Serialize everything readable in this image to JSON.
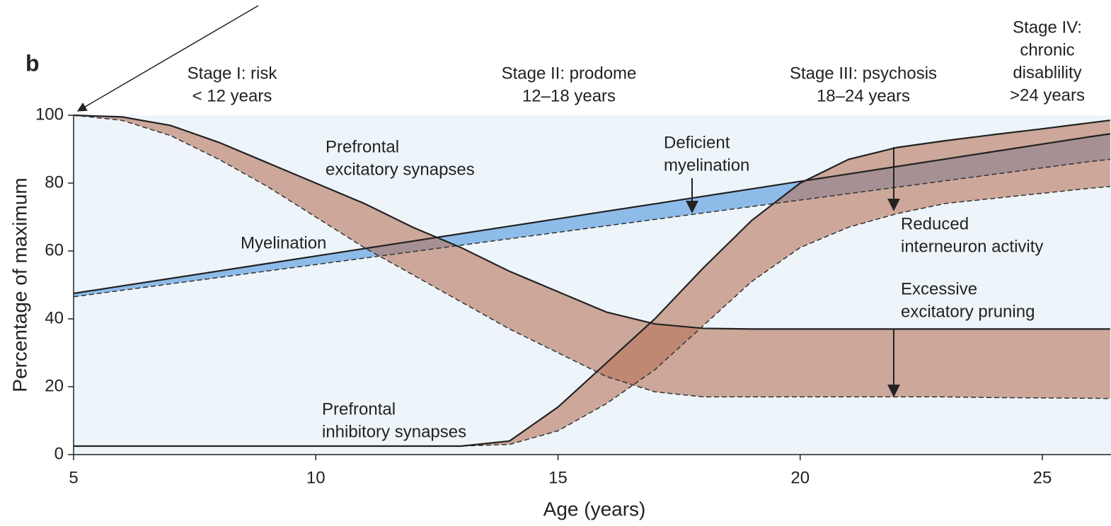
{
  "chart_data": {
    "type": "band",
    "panel": "b",
    "x_label": "Age (years)",
    "y_label": "Percentage of maximum",
    "xlim": [
      5,
      26.4
    ],
    "ylim": [
      0,
      100
    ],
    "xticks": [
      5,
      10,
      15,
      20,
      25
    ],
    "yticks": [
      0,
      20,
      40,
      60,
      80,
      100
    ],
    "x": [
      5,
      6,
      7,
      8,
      9,
      10,
      11,
      12,
      13,
      14,
      15,
      16,
      17,
      18,
      19,
      20,
      21,
      22,
      23,
      24,
      25,
      26,
      26.4
    ],
    "stages": [
      {
        "lines": [
          "Stage I: risk",
          "< 12 years"
        ]
      },
      {
        "lines": [
          "Stage II: prodome",
          "12–18 years"
        ]
      },
      {
        "lines": [
          "Stage III: psychosis",
          "18–24 years"
        ]
      },
      {
        "lines": [
          "Stage IV:",
          "chronic",
          "disablility",
          ">24 years"
        ]
      }
    ],
    "bands": [
      {
        "label": [
          "Myelination"
        ],
        "color": "#7db1e5",
        "upper": [
          47.5,
          49.7,
          51.9,
          54.1,
          56.3,
          58.5,
          60.7,
          62.9,
          65.1,
          67.3,
          69.5,
          71.7,
          73.9,
          76.1,
          78.3,
          80.5,
          82.7,
          84.9,
          87.1,
          89.3,
          91.5,
          93.7,
          94.5
        ],
        "lower": [
          46.5,
          48.4,
          50.3,
          52.2,
          54.1,
          56,
          57.9,
          59.8,
          61.7,
          63.6,
          65.5,
          67.4,
          69.3,
          71.2,
          73.1,
          75,
          76.9,
          78.8,
          80.7,
          82.6,
          84.5,
          86.4,
          87
        ]
      },
      {
        "label": [
          "Prefrontal",
          "excitatory synapses"
        ],
        "color": "#b5735a",
        "upper": [
          100,
          99.5,
          97,
          92,
          86,
          80,
          74,
          67,
          61,
          54,
          48,
          42,
          38.5,
          37.2,
          37,
          37,
          37,
          37,
          37,
          37,
          37,
          37,
          37
        ],
        "lower": [
          100,
          98.5,
          94,
          87,
          79,
          70,
          61,
          53,
          45,
          37,
          30,
          23,
          18.5,
          17,
          17,
          17,
          17,
          17,
          17,
          16.8,
          16.7,
          16.6,
          16.5
        ]
      },
      {
        "label": [
          "Prefrontal",
          "inhibitory synapses"
        ],
        "color": "#b5735a",
        "upper": [
          2.5,
          2.5,
          2.5,
          2.5,
          2.5,
          2.5,
          2.5,
          2.5,
          2.5,
          4,
          14,
          27,
          40,
          55,
          69,
          80,
          87,
          90.5,
          92.5,
          94.3,
          96,
          97.8,
          98.5
        ],
        "lower": [
          2.5,
          2.5,
          2.5,
          2.5,
          2.5,
          2.5,
          2.5,
          2.5,
          2.5,
          3,
          7,
          15,
          25,
          38,
          51,
          61,
          67,
          71,
          74,
          75.5,
          77,
          78.5,
          79
        ]
      }
    ],
    "annotations": [
      {
        "lines": [
          "Deficient",
          "myelination"
        ]
      },
      {
        "lines": [
          "Reduced",
          "interneuron activity"
        ]
      },
      {
        "lines": [
          "Excessive",
          "excitatory pruning"
        ]
      }
    ]
  }
}
